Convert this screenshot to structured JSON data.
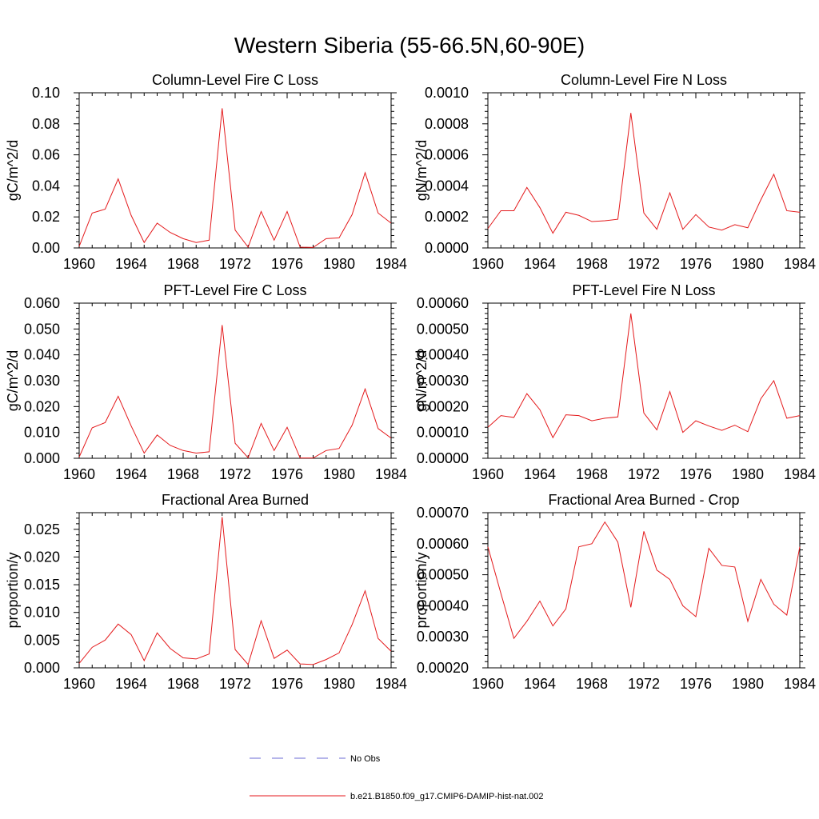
{
  "figure": {
    "title": "Western Siberia (55-66.5N,60-90E)"
  },
  "legend": {
    "items": [
      {
        "label": "No Obs",
        "color": "#6b6bd6",
        "dash": true
      },
      {
        "label": "b.e21.B1850.f09_g17.CMIP6-DAMIP-hist-nat.002",
        "color": "#e41a1c",
        "dash": false
      }
    ]
  },
  "chart_data": [
    {
      "type": "line",
      "title": "Column-Level Fire C Loss",
      "ylabel": "gC/m^2/d",
      "xlim": [
        1960,
        1984
      ],
      "ylim": [
        0,
        0.1
      ],
      "xticks": [
        "1960",
        "1964",
        "1968",
        "1972",
        "1976",
        "1980",
        "1984"
      ],
      "yticks": [
        "0.00",
        "0.02",
        "0.04",
        "0.06",
        "0.08",
        "0.10"
      ],
      "x": [
        1960,
        1961,
        1962,
        1963,
        1964,
        1965,
        1966,
        1967,
        1968,
        1969,
        1970,
        1971,
        1972,
        1973,
        1974,
        1975,
        1976,
        1977,
        1978,
        1979,
        1980,
        1981,
        1982,
        1983,
        1984
      ],
      "series": [
        {
          "color": "#e41a1c",
          "values": [
            0.001,
            0.0225,
            0.025,
            0.0445,
            0.021,
            0.0035,
            0.016,
            0.01,
            0.006,
            0.0035,
            0.005,
            0.09,
            0.0115,
            0.0005,
            0.0235,
            0.005,
            0.0235,
            0.0005,
            0.0003,
            0.006,
            0.0065,
            0.0215,
            0.0485,
            0.0225,
            0.016
          ]
        }
      ]
    },
    {
      "type": "line",
      "title": "Column-Level Fire N Loss",
      "ylabel": "gN/m^2/d",
      "xlim": [
        1960,
        1984
      ],
      "ylim": [
        0,
        0.001
      ],
      "xticks": [
        "1960",
        "1964",
        "1968",
        "1972",
        "1976",
        "1980",
        "1984"
      ],
      "yticks": [
        "0.0000",
        "0.0002",
        "0.0004",
        "0.0006",
        "0.0008",
        "0.0010"
      ],
      "x": [
        1960,
        1961,
        1962,
        1963,
        1964,
        1965,
        1966,
        1967,
        1968,
        1969,
        1970,
        1971,
        1972,
        1973,
        1974,
        1975,
        1976,
        1977,
        1978,
        1979,
        1980,
        1981,
        1982,
        1983,
        1984
      ],
      "series": [
        {
          "color": "#e41a1c",
          "values": [
            0.000125,
            0.00024,
            0.00024,
            0.00039,
            0.00026,
            9.5e-05,
            0.00023,
            0.00021,
            0.00017,
            0.000175,
            0.000185,
            0.00087,
            0.000225,
            0.00012,
            0.000355,
            0.00012,
            0.000215,
            0.000135,
            0.000115,
            0.00015,
            0.00013,
            0.00031,
            0.000475,
            0.00024,
            0.00023
          ]
        }
      ]
    },
    {
      "type": "line",
      "title": "PFT-Level Fire C Loss",
      "ylabel": "gC/m^2/d",
      "xlim": [
        1960,
        1984
      ],
      "ylim": [
        0,
        0.06
      ],
      "xticks": [
        "1960",
        "1964",
        "1968",
        "1972",
        "1976",
        "1980",
        "1984"
      ],
      "yticks": [
        "0.000",
        "0.010",
        "0.020",
        "0.030",
        "0.040",
        "0.050",
        "0.060"
      ],
      "x": [
        1960,
        1961,
        1962,
        1963,
        1964,
        1965,
        1966,
        1967,
        1968,
        1969,
        1970,
        1971,
        1972,
        1973,
        1974,
        1975,
        1976,
        1977,
        1978,
        1979,
        1980,
        1981,
        1982,
        1983,
        1984
      ],
      "series": [
        {
          "color": "#e41a1c",
          "values": [
            0.0005,
            0.0118,
            0.0138,
            0.024,
            0.0125,
            0.002,
            0.009,
            0.005,
            0.003,
            0.002,
            0.0025,
            0.0515,
            0.0058,
            0.0002,
            0.0135,
            0.003,
            0.012,
            0.0001,
            0.0001,
            0.003,
            0.0038,
            0.0128,
            0.0268,
            0.0115,
            0.0078
          ]
        }
      ]
    },
    {
      "type": "line",
      "title": "PFT-Level Fire N Loss",
      "ylabel": "gN/m^2/d",
      "xlim": [
        1960,
        1984
      ],
      "ylim": [
        0,
        0.0006
      ],
      "xticks": [
        "1960",
        "1964",
        "1968",
        "1972",
        "1976",
        "1980",
        "1984"
      ],
      "yticks": [
        "0.00000",
        "0.00010",
        "0.00020",
        "0.00030",
        "0.00040",
        "0.00050",
        "0.00060"
      ],
      "x": [
        1960,
        1961,
        1962,
        1963,
        1964,
        1965,
        1966,
        1967,
        1968,
        1969,
        1970,
        1971,
        1972,
        1973,
        1974,
        1975,
        1976,
        1977,
        1978,
        1979,
        1980,
        1981,
        1982,
        1983,
        1984
      ],
      "series": [
        {
          "color": "#e41a1c",
          "values": [
            0.00012,
            0.000165,
            0.000158,
            0.00025,
            0.000188,
            8e-05,
            0.000168,
            0.000165,
            0.000145,
            0.000155,
            0.00016,
            0.00056,
            0.000175,
            0.00011,
            0.000258,
            0.0001,
            0.000145,
            0.000125,
            0.000108,
            0.000128,
            0.000103,
            0.00023,
            0.0003,
            0.000155,
            0.000165
          ]
        }
      ]
    },
    {
      "type": "line",
      "title": "Fractional Area Burned",
      "ylabel": "proportion/y",
      "xlim": [
        1960,
        1984
      ],
      "ylim": [
        0,
        0.028
      ],
      "xticks": [
        "1960",
        "1964",
        "1968",
        "1972",
        "1976",
        "1980",
        "1984"
      ],
      "yticks": [
        "0.000",
        "0.005",
        "0.010",
        "0.015",
        "0.020",
        "0.025"
      ],
      "x": [
        1960,
        1961,
        1962,
        1963,
        1964,
        1965,
        1966,
        1967,
        1968,
        1969,
        1970,
        1971,
        1972,
        1973,
        1974,
        1975,
        1976,
        1977,
        1978,
        1979,
        1980,
        1981,
        1982,
        1983,
        1984
      ],
      "series": [
        {
          "color": "#e41a1c",
          "values": [
            0.0008,
            0.0037,
            0.005,
            0.0079,
            0.006,
            0.0013,
            0.0063,
            0.0035,
            0.0018,
            0.0016,
            0.0025,
            0.0272,
            0.0033,
            0.0006,
            0.0085,
            0.0017,
            0.0032,
            0.0007,
            0.0006,
            0.0015,
            0.0027,
            0.0078,
            0.0139,
            0.0053,
            0.003
          ]
        }
      ]
    },
    {
      "type": "line",
      "title": "Fractional Area Burned - Crop",
      "ylabel": "proportion/y",
      "xlim": [
        1960,
        1984
      ],
      "ylim": [
        0.0002,
        0.0007
      ],
      "xticks": [
        "1960",
        "1964",
        "1968",
        "1972",
        "1976",
        "1980",
        "1984"
      ],
      "yticks": [
        "0.00020",
        "0.00030",
        "0.00040",
        "0.00050",
        "0.00060",
        "0.00070"
      ],
      "x": [
        1960,
        1961,
        1962,
        1963,
        1964,
        1965,
        1966,
        1967,
        1968,
        1969,
        1970,
        1971,
        1972,
        1973,
        1974,
        1975,
        1976,
        1977,
        1978,
        1979,
        1980,
        1981,
        1982,
        1983,
        1984
      ],
      "series": [
        {
          "color": "#e41a1c",
          "values": [
            0.00059,
            0.00044,
            0.000295,
            0.00035,
            0.000415,
            0.000335,
            0.00039,
            0.00059,
            0.0006,
            0.00067,
            0.000605,
            0.000395,
            0.00064,
            0.000515,
            0.000485,
            0.0004,
            0.000365,
            0.000585,
            0.00053,
            0.000525,
            0.00035,
            0.000485,
            0.000405,
            0.00037,
            0.00059
          ]
        }
      ]
    }
  ]
}
